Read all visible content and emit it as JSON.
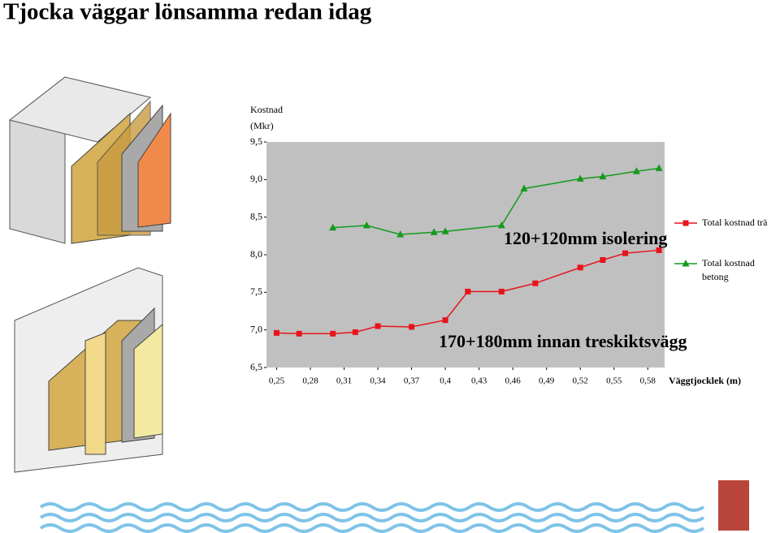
{
  "title": "Tjocka väggar lönsamma redan idag",
  "chart_data": {
    "type": "line",
    "y_label": "Kostnad (Mkr)",
    "x_label": "Väggtjocklek (m)",
    "annotations": [
      "120+120mm isolering",
      "170+180mm innan treskiktsvägg"
    ],
    "xlim": [
      0.241,
      0.595
    ],
    "ylim": [
      6.5,
      9.5
    ],
    "xticks": [
      {
        "value": 0.25,
        "label": "0,25"
      },
      {
        "value": 0.28,
        "label": "0,28"
      },
      {
        "value": 0.31,
        "label": "0,31"
      },
      {
        "value": 0.34,
        "label": "0,34"
      },
      {
        "value": 0.37,
        "label": "0,37"
      },
      {
        "value": 0.4,
        "label": "0,4"
      },
      {
        "value": 0.43,
        "label": "0,43"
      },
      {
        "value": 0.46,
        "label": "0,46"
      },
      {
        "value": 0.49,
        "label": "0,49"
      },
      {
        "value": 0.52,
        "label": "0,52"
      },
      {
        "value": 0.55,
        "label": "0,55"
      },
      {
        "value": 0.58,
        "label": "0,58"
      }
    ],
    "yticks": [
      {
        "value": 6.5,
        "label": "6,5"
      },
      {
        "value": 7.0,
        "label": "7,0"
      },
      {
        "value": 7.5,
        "label": "7,5"
      },
      {
        "value": 8.0,
        "label": "8,0"
      },
      {
        "value": 8.5,
        "label": "8,5"
      },
      {
        "value": 9.0,
        "label": "9,0"
      },
      {
        "value": 9.5,
        "label": "9,5"
      }
    ],
    "series": [
      {
        "name": "Total kostnad trä",
        "color": "#e8141c",
        "marker": "square",
        "x": [
          0.25,
          0.27,
          0.3,
          0.32,
          0.34,
          0.37,
          0.4,
          0.42,
          0.45,
          0.48,
          0.52,
          0.54,
          0.56,
          0.59
        ],
        "values": [
          6.96,
          6.95,
          6.95,
          6.97,
          7.05,
          7.04,
          7.13,
          7.51,
          7.51,
          7.62,
          7.83,
          7.93,
          8.02,
          8.06
        ]
      },
      {
        "name": "Total kostnad betong",
        "color": "#149a1c",
        "marker": "triangle",
        "x": [
          0.3,
          0.33,
          0.36,
          0.39,
          0.4,
          0.45,
          0.47,
          0.52,
          0.54,
          0.57,
          0.59
        ],
        "values": [
          8.36,
          8.39,
          8.27,
          8.3,
          8.31,
          8.39,
          8.88,
          9.01,
          9.04,
          9.11,
          9.15
        ]
      }
    ]
  }
}
